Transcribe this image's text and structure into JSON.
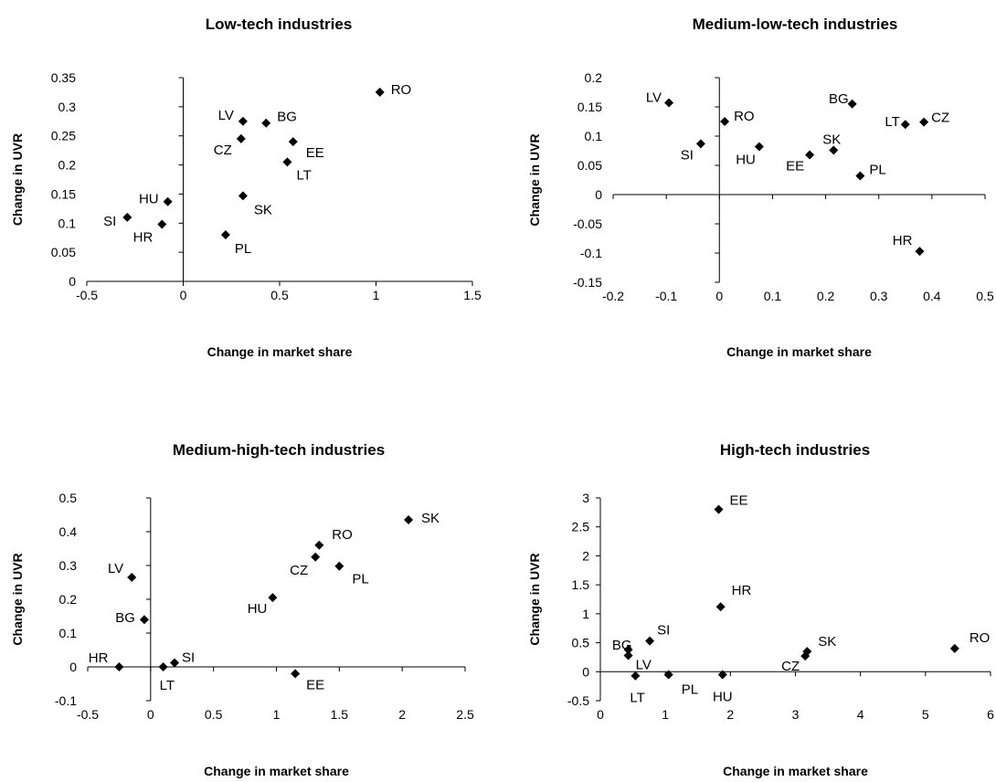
{
  "chart_data": [
    {
      "type": "scatter",
      "title": "Low-tech industries",
      "xlabel": "Change in market share",
      "ylabel": "Change in UVR",
      "xlim": [
        -0.5,
        1.5
      ],
      "ylim": [
        0,
        0.35
      ],
      "xticks": [
        "-0.5",
        "0",
        "0.5",
        "1",
        "1.5"
      ],
      "yticks": [
        "0",
        "0.05",
        "0.1",
        "0.15",
        "0.2",
        "0.25",
        "0.3",
        "0.35"
      ],
      "points": [
        {
          "label": "RO",
          "x": 1.02,
          "y": 0.325
        },
        {
          "label": "LV",
          "x": 0.31,
          "y": 0.275
        },
        {
          "label": "BG",
          "x": 0.43,
          "y": 0.272
        },
        {
          "label": "CZ",
          "x": 0.3,
          "y": 0.245
        },
        {
          "label": "EE",
          "x": 0.57,
          "y": 0.24
        },
        {
          "label": "LT",
          "x": 0.54,
          "y": 0.205
        },
        {
          "label": "HU",
          "x": -0.08,
          "y": 0.137
        },
        {
          "label": "SK",
          "x": 0.31,
          "y": 0.147
        },
        {
          "label": "SI",
          "x": -0.29,
          "y": 0.11
        },
        {
          "label": "HR",
          "x": -0.11,
          "y": 0.098
        },
        {
          "label": "PL",
          "x": 0.22,
          "y": 0.08
        }
      ]
    },
    {
      "type": "scatter",
      "title": "Medium-low-tech industries",
      "xlabel": "Change in market share",
      "ylabel": "Change in UVR",
      "xlim": [
        -0.2,
        0.5
      ],
      "ylim": [
        -0.15,
        0.2
      ],
      "xticks": [
        "-0.2",
        "-0.1",
        "0",
        "0.1",
        "0.2",
        "0.3",
        "0.4",
        "0.5"
      ],
      "yticks": [
        "-0.15",
        "-0.1",
        "-0.05",
        "0",
        "0.05",
        "0.1",
        "0.15",
        "0.2"
      ],
      "points": [
        {
          "label": "LV",
          "x": -0.095,
          "y": 0.157
        },
        {
          "label": "RO",
          "x": 0.01,
          "y": 0.125
        },
        {
          "label": "SI",
          "x": -0.035,
          "y": 0.087
        },
        {
          "label": "HU",
          "x": 0.075,
          "y": 0.082
        },
        {
          "label": "BG",
          "x": 0.25,
          "y": 0.155
        },
        {
          "label": "LT",
          "x": 0.35,
          "y": 0.12
        },
        {
          "label": "CZ",
          "x": 0.385,
          "y": 0.124
        },
        {
          "label": "SK",
          "x": 0.215,
          "y": 0.076
        },
        {
          "label": "EE",
          "x": 0.17,
          "y": 0.068
        },
        {
          "label": "PL",
          "x": 0.265,
          "y": 0.032
        },
        {
          "label": "HR",
          "x": 0.377,
          "y": -0.097
        }
      ]
    },
    {
      "type": "scatter",
      "title": "Medium-high-tech industries",
      "xlabel": "Change in market share",
      "ylabel": "Change in UVR",
      "xlim": [
        -0.5,
        2.5
      ],
      "ylim": [
        -0.1,
        0.5
      ],
      "xticks": [
        "-0.5",
        "0",
        "0.5",
        "1",
        "1.5",
        "2",
        "2.5"
      ],
      "yticks": [
        "-0.1",
        "0",
        "0.1",
        "0.2",
        "0.3",
        "0.4",
        "0.5"
      ],
      "points": [
        {
          "label": "SK",
          "x": 2.05,
          "y": 0.435
        },
        {
          "label": "RO",
          "x": 1.34,
          "y": 0.36
        },
        {
          "label": "CZ",
          "x": 1.31,
          "y": 0.325
        },
        {
          "label": "PL",
          "x": 1.5,
          "y": 0.298
        },
        {
          "label": "HU",
          "x": 0.97,
          "y": 0.205
        },
        {
          "label": "LV",
          "x": -0.15,
          "y": 0.265
        },
        {
          "label": "BG",
          "x": -0.05,
          "y": 0.14
        },
        {
          "label": "SI",
          "x": 0.19,
          "y": 0.012
        },
        {
          "label": "LT",
          "x": 0.1,
          "y": 0.0
        },
        {
          "label": "HR",
          "x": -0.25,
          "y": 0.0
        },
        {
          "label": "EE",
          "x": 1.15,
          "y": -0.02
        }
      ]
    },
    {
      "type": "scatter",
      "title": "High-tech industries",
      "xlabel": "Change in market share",
      "ylabel": "Change in UVR",
      "xlim": [
        0,
        6
      ],
      "ylim": [
        -0.5,
        3
      ],
      "xticks": [
        "0",
        "1",
        "2",
        "3",
        "4",
        "5",
        "6"
      ],
      "yticks": [
        "-0.5",
        "0",
        "0.5",
        "1",
        "1.5",
        "2",
        "2.5",
        "3"
      ],
      "points": [
        {
          "label": "EE",
          "x": 1.82,
          "y": 2.8
        },
        {
          "label": "HR",
          "x": 1.85,
          "y": 1.12
        },
        {
          "label": "SI",
          "x": 0.76,
          "y": 0.53
        },
        {
          "label": "BG",
          "x": 0.43,
          "y": 0.38
        },
        {
          "label": "LV",
          "x": 0.43,
          "y": 0.28
        },
        {
          "label": "LT",
          "x": 0.54,
          "y": -0.07
        },
        {
          "label": "PL",
          "x": 1.05,
          "y": -0.05
        },
        {
          "label": "HU",
          "x": 1.88,
          "y": -0.05
        },
        {
          "label": "SK",
          "x": 3.18,
          "y": 0.35
        },
        {
          "label": "CZ",
          "x": 3.15,
          "y": 0.27
        },
        {
          "label": "RO",
          "x": 5.45,
          "y": 0.4
        }
      ]
    }
  ]
}
